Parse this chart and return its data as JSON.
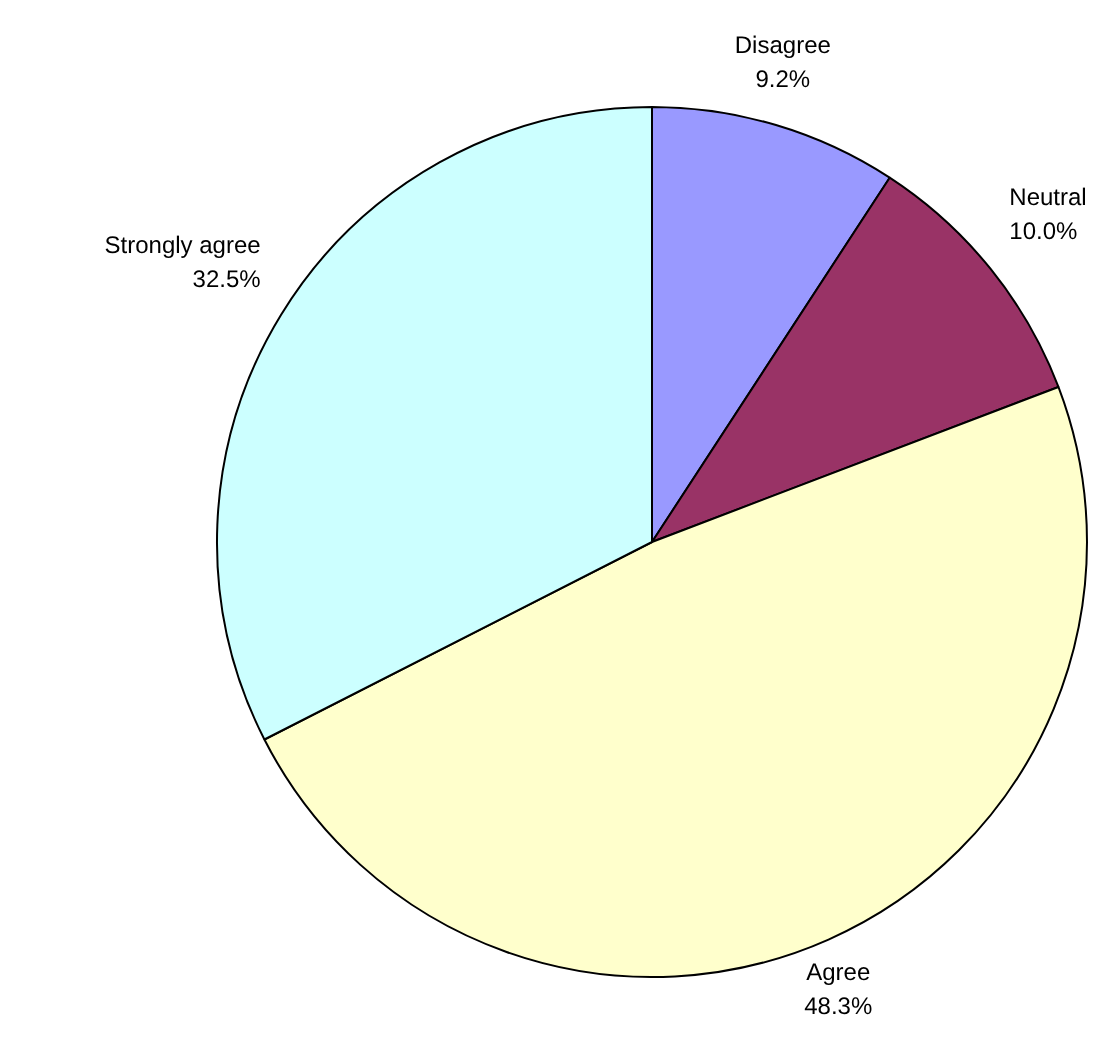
{
  "chart_data": {
    "type": "pie",
    "categories": [
      "Disagree",
      "Neutral",
      "Agree",
      "Strongly agree"
    ],
    "values": [
      9.2,
      10.0,
      48.3,
      32.5
    ],
    "value_labels": [
      "9.2%",
      "10.0%",
      "48.3%",
      "32.5%"
    ],
    "colors": [
      "#9999ff",
      "#993366",
      "#ffffcc",
      "#ccffff"
    ],
    "legend": false
  }
}
